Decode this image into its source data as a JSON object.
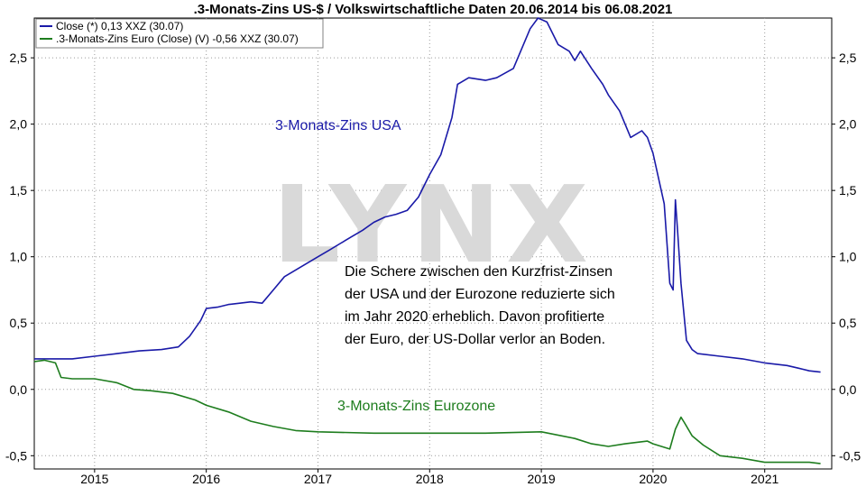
{
  "chart_data": {
    "type": "line",
    "title": ".3-Monats-Zins US-$ / Volkswirtschaftliche Daten 20.06.2014 bis 06.08.2021",
    "xlabel": "",
    "ylabel": "",
    "xlim": [
      2014.46,
      2021.6
    ],
    "ylim": [
      -0.6,
      2.8
    ],
    "x_ticks": [
      2015,
      2016,
      2017,
      2018,
      2019,
      2020,
      2021
    ],
    "x_tick_labels": [
      "2015",
      "2016",
      "2017",
      "2018",
      "2019",
      "2020",
      "2021"
    ],
    "y_ticks": [
      -0.5,
      0,
      0.5,
      1,
      1.5,
      2,
      2.5
    ],
    "y_tick_labels": [
      "-0,5",
      "0,0",
      "0,5",
      "1,0",
      "1,5",
      "2,0",
      "2,5"
    ],
    "grid": true,
    "legend_position": "top-left",
    "watermark": "LYNX",
    "series": [
      {
        "name": "Close (*) 0,13 XXZ (30.07)",
        "color": "#1a1aa8",
        "x": [
          2014.46,
          2014.6,
          2014.8,
          2015.0,
          2015.2,
          2015.4,
          2015.6,
          2015.75,
          2015.85,
          2015.95,
          2016.0,
          2016.1,
          2016.2,
          2016.3,
          2016.4,
          2016.5,
          2016.6,
          2016.7,
          2016.8,
          2016.9,
          2017.0,
          2017.1,
          2017.2,
          2017.3,
          2017.4,
          2017.5,
          2017.6,
          2017.7,
          2017.8,
          2017.9,
          2018.0,
          2018.1,
          2018.2,
          2018.25,
          2018.35,
          2018.5,
          2018.6,
          2018.75,
          2018.9,
          2018.97,
          2019.05,
          2019.15,
          2019.25,
          2019.3,
          2019.35,
          2019.45,
          2019.55,
          2019.6,
          2019.7,
          2019.8,
          2019.9,
          2019.95,
          2020.0,
          2020.1,
          2020.15,
          2020.18,
          2020.2,
          2020.22,
          2020.25,
          2020.3,
          2020.35,
          2020.4,
          2020.6,
          2020.8,
          2021.0,
          2021.2,
          2021.3,
          2021.4,
          2021.5
        ],
        "y": [
          0.23,
          0.23,
          0.23,
          0.25,
          0.27,
          0.29,
          0.3,
          0.32,
          0.4,
          0.52,
          0.61,
          0.62,
          0.64,
          0.65,
          0.66,
          0.65,
          0.75,
          0.85,
          0.9,
          0.95,
          1.0,
          1.05,
          1.1,
          1.15,
          1.2,
          1.26,
          1.3,
          1.32,
          1.35,
          1.45,
          1.62,
          1.77,
          2.05,
          2.3,
          2.35,
          2.33,
          2.35,
          2.42,
          2.72,
          2.8,
          2.77,
          2.6,
          2.55,
          2.48,
          2.55,
          2.42,
          2.3,
          2.22,
          2.1,
          1.9,
          1.95,
          1.9,
          1.78,
          1.4,
          0.8,
          0.75,
          1.43,
          1.2,
          0.8,
          0.37,
          0.3,
          0.27,
          0.25,
          0.23,
          0.2,
          0.18,
          0.16,
          0.14,
          0.13
        ]
      },
      {
        "name": ".3-Monats-Zins Euro (Close) (V) -0,56 XXZ (30.07)",
        "color": "#1e7d1e",
        "x": [
          2014.46,
          2014.55,
          2014.65,
          2014.7,
          2014.8,
          2015.0,
          2015.2,
          2015.35,
          2015.5,
          2015.7,
          2015.9,
          2016.0,
          2016.2,
          2016.4,
          2016.6,
          2016.8,
          2017.0,
          2017.5,
          2018.0,
          2018.5,
          2019.0,
          2019.3,
          2019.45,
          2019.6,
          2019.75,
          2019.85,
          2019.95,
          2020.0,
          2020.15,
          2020.2,
          2020.25,
          2020.28,
          2020.35,
          2020.45,
          2020.6,
          2020.8,
          2021.0,
          2021.2,
          2021.4,
          2021.5
        ],
        "y": [
          0.21,
          0.22,
          0.2,
          0.09,
          0.08,
          0.08,
          0.05,
          0.0,
          -0.01,
          -0.03,
          -0.08,
          -0.12,
          -0.17,
          -0.24,
          -0.28,
          -0.31,
          -0.32,
          -0.33,
          -0.33,
          -0.33,
          -0.32,
          -0.37,
          -0.41,
          -0.43,
          -0.41,
          -0.4,
          -0.39,
          -0.41,
          -0.45,
          -0.3,
          -0.21,
          -0.25,
          -0.35,
          -0.42,
          -0.5,
          -0.52,
          -0.55,
          -0.55,
          -0.55,
          -0.56
        ]
      }
    ],
    "annotations": [
      {
        "text": "3-Monats-Zins USA",
        "color": "#1a1aa8"
      },
      {
        "text": "3-Monats-Zins Eurozone",
        "color": "#1e7d1e"
      },
      {
        "text": "Die Schere zwischen den Kurzfrist-Zinsen",
        "color": "#000000"
      },
      {
        "text": "der USA und der Eurozone reduzierte sich",
        "color": "#000000"
      },
      {
        "text": "im Jahr 2020 erheblich. Davon profitierte",
        "color": "#000000"
      },
      {
        "text": "der Euro, der US-Dollar verlor an Boden.",
        "color": "#000000"
      }
    ]
  }
}
